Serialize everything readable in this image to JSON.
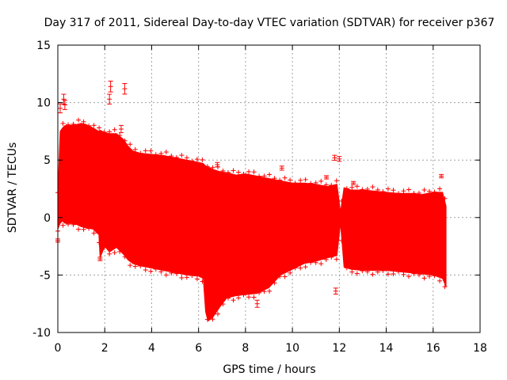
{
  "chart_data": {
    "type": "scatter",
    "title": "Day 317 of 2011, Sidereal Day-to-day VTEC variation (SDTVAR) for receiver p367",
    "xlabel": "GPS time / hours",
    "ylabel": "SDTVAR / TECUs",
    "xlim": [
      0,
      18
    ],
    "ylim": [
      -10,
      15
    ],
    "xticks": [
      "0",
      "2",
      "4",
      "6",
      "8",
      "10",
      "12",
      "14",
      "16",
      "18"
    ],
    "yticks": [
      "-10",
      "-5",
      "0",
      "5",
      "10",
      "15"
    ],
    "grid": true,
    "marker": "plus",
    "colors": {
      "series": "#ff0000",
      "grid": "#a0a0a0",
      "axis": "#000000"
    },
    "series": [
      {
        "name": "SDTVAR",
        "style": "dense band with error bars",
        "envelope_x": [
          0.0,
          0.1,
          0.2,
          0.3,
          0.5,
          0.8,
          1.0,
          1.2,
          1.5,
          1.75,
          1.8,
          2.0,
          2.2,
          2.5,
          2.8,
          3.0,
          3.2,
          3.5,
          4.0,
          4.5,
          5.0,
          5.5,
          6.0,
          6.2,
          6.3,
          6.4,
          6.6,
          6.9,
          7.2,
          7.6,
          8.0,
          8.5,
          9.0,
          9.5,
          10.0,
          10.5,
          11.0,
          11.5,
          11.9,
          12.05,
          12.2,
          12.5,
          13.0,
          13.5,
          14.0,
          14.5,
          15.0,
          15.5,
          16.0,
          16.4,
          16.55
        ],
        "upper": [
          2.0,
          7.5,
          7.8,
          8.0,
          8.0,
          8.1,
          8.2,
          8.1,
          7.8,
          7.5,
          7.6,
          7.4,
          7.3,
          7.3,
          6.8,
          6.2,
          5.8,
          5.6,
          5.5,
          5.4,
          5.2,
          5.0,
          4.8,
          4.7,
          4.5,
          4.4,
          4.2,
          4.0,
          3.9,
          3.7,
          3.8,
          3.6,
          3.4,
          3.2,
          3.0,
          3.0,
          2.9,
          2.7,
          2.9,
          0.5,
          2.6,
          2.4,
          2.4,
          2.3,
          2.2,
          2.1,
          2.1,
          2.0,
          2.2,
          2.2,
          1.0
        ],
        "lower": [
          -1.0,
          -0.5,
          -0.3,
          -0.5,
          -0.5,
          -0.6,
          -0.8,
          -0.9,
          -1.0,
          -1.5,
          -3.5,
          -2.5,
          -3.0,
          -2.6,
          -3.2,
          -3.7,
          -4.0,
          -4.2,
          -4.4,
          -4.6,
          -4.8,
          -5.0,
          -5.1,
          -5.3,
          -8.2,
          -9.0,
          -8.7,
          -7.8,
          -7.0,
          -6.8,
          -6.7,
          -6.6,
          -6.1,
          -5.0,
          -4.5,
          -4.0,
          -3.8,
          -3.5,
          -3.3,
          -0.5,
          -4.3,
          -4.5,
          -4.6,
          -4.6,
          -4.6,
          -4.7,
          -4.8,
          -4.9,
          -5.0,
          -5.3,
          -6.0
        ],
        "outliers": [
          {
            "x": 0.0,
            "y": -2.0
          },
          {
            "x": 0.1,
            "y": 9.5
          },
          {
            "x": 0.25,
            "y": 10.3
          },
          {
            "x": 0.3,
            "y": 9.8
          },
          {
            "x": 1.8,
            "y": -3.6
          },
          {
            "x": 2.2,
            "y": 10.3
          },
          {
            "x": 2.25,
            "y": 11.4
          },
          {
            "x": 2.85,
            "y": 11.2
          },
          {
            "x": 2.7,
            "y": 7.7
          },
          {
            "x": 6.8,
            "y": 4.6
          },
          {
            "x": 8.5,
            "y": -7.5
          },
          {
            "x": 9.55,
            "y": 4.3
          },
          {
            "x": 11.45,
            "y": 3.5
          },
          {
            "x": 11.8,
            "y": 5.2
          },
          {
            "x": 11.85,
            "y": -6.4
          },
          {
            "x": 12.0,
            "y": 5.1
          },
          {
            "x": 12.6,
            "y": 3.0
          },
          {
            "x": 16.35,
            "y": 3.6
          }
        ]
      }
    ]
  }
}
